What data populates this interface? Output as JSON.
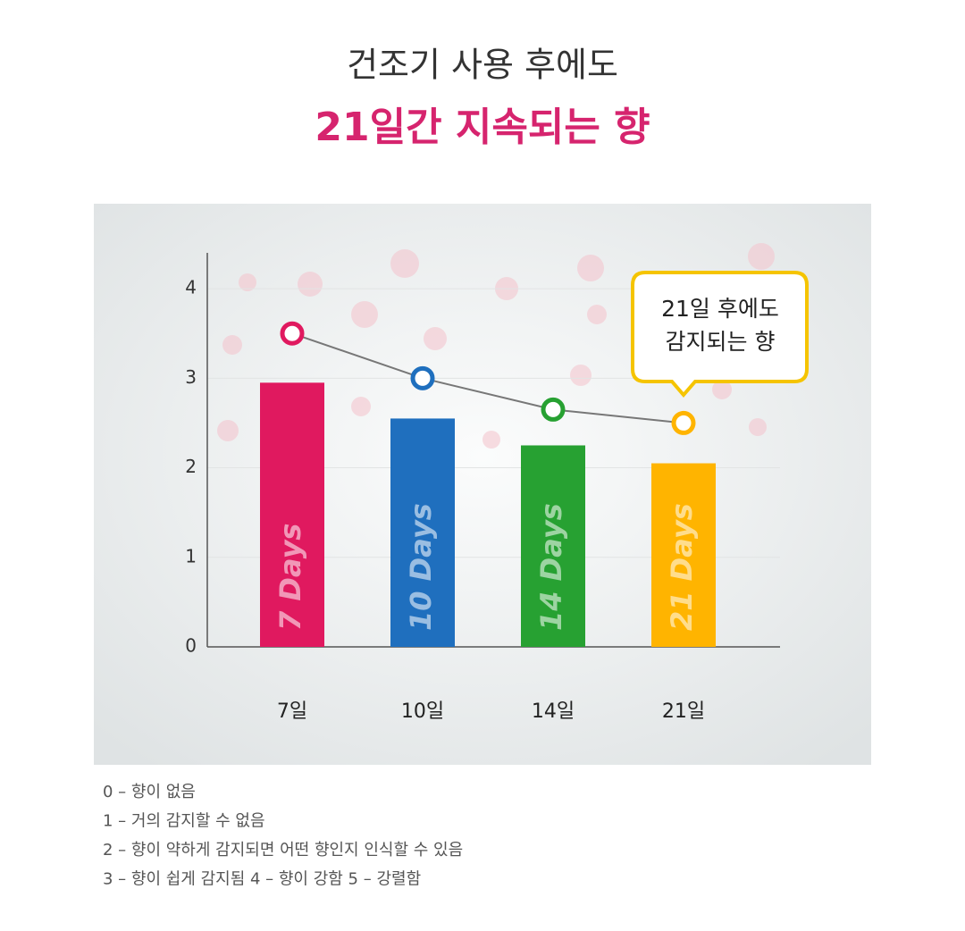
{
  "chart_data": {
    "type": "bar",
    "title": "건조기 사용 후에도",
    "subtitle": "21일간 지속되는 향",
    "categories": [
      "7일",
      "10일",
      "14일",
      "21일"
    ],
    "series": [
      {
        "type": "bar",
        "values": [
          2.95,
          2.55,
          2.25,
          2.05
        ],
        "bar_labels": [
          "7 Days",
          "10 Days",
          "14 Days",
          "21 Days"
        ],
        "colors": [
          "#e0195f",
          "#1f6fbe",
          "#27a132",
          "#ffb400"
        ]
      },
      {
        "type": "line",
        "values": [
          3.5,
          3.0,
          2.65,
          2.5
        ],
        "color": "#777777"
      }
    ],
    "ylim": [
      0,
      4.4
    ],
    "yticks": [
      0,
      1,
      2,
      3,
      4
    ],
    "grid": true,
    "annotation": [
      "21일 후에도",
      "감지되는 향"
    ],
    "notes": [
      "0 – 향이 없음",
      "1 – 거의 감지할 수 없음",
      "2 – 향이 약하게 감지되면 어떤 향인지 인식할 수 있음",
      "3 – 향이 쉽게 감지됨 4 – 향이 강함 5 – 강렬함"
    ]
  }
}
